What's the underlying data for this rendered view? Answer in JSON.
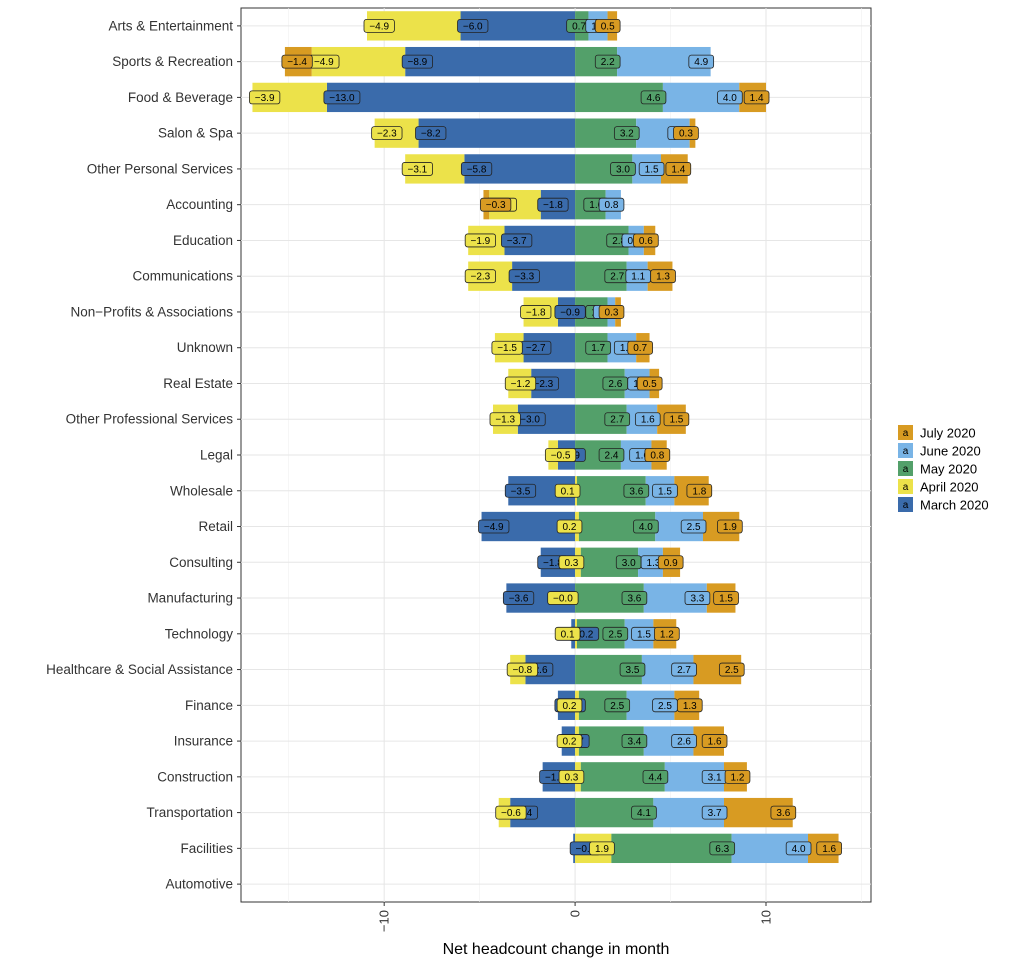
{
  "chart_data": {
    "type": "bar",
    "orientation": "horizontal",
    "stacking": "diverging-stacked",
    "xlabel": "Net headcount change in month",
    "ylabel": "",
    "xlim": [
      -17.5,
      15.5
    ],
    "xticks": [
      -10,
      0,
      10
    ],
    "xtick_labels": [
      "−10",
      "0",
      "10"
    ],
    "grid": true,
    "legend_position": "right",
    "legend_key_glyph": "a",
    "colors": {
      "March 2020": "#3a6bab",
      "April 2020": "#ece24a",
      "May 2020": "#53a06a",
      "June 2020": "#79b4e6",
      "July 2020": "#d89b22"
    },
    "categories": [
      "Arts & Entertainment",
      "Sports & Recreation",
      "Food & Beverage",
      "Salon & Spa",
      "Other Personal Services",
      "Accounting",
      "Education",
      "Communications",
      "Non−Profits & Associations",
      "Unknown",
      "Real Estate",
      "Other Professional Services",
      "Legal",
      "Wholesale",
      "Retail",
      "Consulting",
      "Manufacturing",
      "Technology",
      "Healthcare & Social Assistance",
      "Finance",
      "Insurance",
      "Construction",
      "Transportation",
      "Facilities",
      "Automotive"
    ],
    "series": [
      {
        "name": "March 2020",
        "values": [
          -6.0,
          -8.9,
          -13.0,
          -8.2,
          -5.8,
          -1.8,
          -3.7,
          -3.3,
          -0.9,
          -2.7,
          -2.3,
          -3.0,
          -0.9,
          -3.5,
          -4.9,
          -1.8,
          -3.6,
          -0.2,
          -2.6,
          -0.9,
          -0.7,
          -1.7,
          -3.4,
          -0.1,
          null
        ]
      },
      {
        "name": "April 2020",
        "values": [
          -4.9,
          -4.9,
          -3.9,
          -2.3,
          -3.1,
          -2.7,
          -1.9,
          -2.3,
          -1.8,
          -1.5,
          -1.2,
          -1.3,
          -0.5,
          0.1,
          0.2,
          0.3,
          -0.0,
          0.1,
          -0.8,
          0.2,
          0.2,
          0.3,
          -0.6,
          1.9,
          null
        ]
      },
      {
        "name": "May 2020",
        "values": [
          0.7,
          2.2,
          4.6,
          3.2,
          3.0,
          1.6,
          2.8,
          2.7,
          1.7,
          1.7,
          2.6,
          2.7,
          2.4,
          3.6,
          4.0,
          3.0,
          3.6,
          2.5,
          3.5,
          2.5,
          3.4,
          4.4,
          4.1,
          6.3,
          null
        ]
      },
      {
        "name": "June 2020",
        "values": [
          1.0,
          4.9,
          4.0,
          2.8,
          1.5,
          0.8,
          0.8,
          1.1,
          0.4,
          1.5,
          1.3,
          1.6,
          1.6,
          1.5,
          2.5,
          1.3,
          3.3,
          1.5,
          2.7,
          2.5,
          2.6,
          3.1,
          3.7,
          4.0,
          null
        ]
      },
      {
        "name": "July 2020",
        "values": [
          0.5,
          -1.4,
          1.4,
          0.3,
          1.4,
          -0.3,
          0.6,
          1.3,
          0.3,
          0.7,
          0.5,
          1.5,
          0.8,
          1.8,
          1.9,
          0.9,
          1.5,
          1.2,
          2.5,
          1.3,
          1.6,
          1.2,
          3.6,
          1.6,
          null
        ]
      }
    ],
    "data_label_texts": {
      "March 2020": [
        "−6.0",
        "−8.9",
        "−13.0",
        "−8.2",
        "−5.8",
        "−1.8",
        "−3.7",
        "−3.3",
        "−0.9",
        "−2.7",
        "−2.3",
        "−3.0",
        "−0.9",
        "−3.5",
        "−4.9",
        "−1.8",
        "−3.6",
        "−0.2",
        "−2.6",
        "−0.9",
        "−0.7",
        "−1.7",
        "−3.4",
        "−0.1",
        null
      ],
      "April 2020": [
        "−4.9",
        "−4.9",
        "−3.9",
        "−2.3",
        "−3.1",
        "−2.7",
        "−1.9",
        "−2.3",
        "−1.8",
        "−1.5",
        "−1.2",
        "−1.3",
        "−0.5",
        "0.1",
        "0.2",
        "0.3",
        "−0.0",
        "0.1",
        "−0.8",
        "0.2",
        "0.2",
        "0.3",
        "−0.6",
        "1.9",
        null
      ],
      "May 2020": [
        "0.7",
        "2.2",
        "4.6",
        "3.2",
        "3.0",
        "1.6",
        "2.8",
        "2.7",
        "1.7",
        "1.7",
        "2.6",
        "2.7",
        "2.4",
        "3.6",
        "4.0",
        "3.0",
        "3.6",
        "2.5",
        "3.5",
        "2.5",
        "3.4",
        "4.4",
        "4.1",
        "6.3",
        null
      ],
      "June 2020": [
        "1.0",
        "4.9",
        "4.0",
        "2.8",
        "1.5",
        "0.8",
        "0.8",
        "1.1",
        "0.4",
        "1.5",
        "1.3",
        "1.6",
        "1.6",
        "1.5",
        "2.5",
        "1.3",
        "3.3",
        "1.5",
        "2.7",
        "2.5",
        "2.6",
        "3.1",
        "3.7",
        "4.0",
        null
      ],
      "July 2020": [
        "0.5",
        "−1.4",
        "1.4",
        "0.3",
        "1.4",
        "−0.3",
        "0.6",
        "1.3",
        "0.3",
        "0.7",
        "0.5",
        "1.5",
        "0.8",
        "1.8",
        "1.9",
        "0.9",
        "1.5",
        "1.2",
        "2.5",
        "1.3",
        "1.6",
        "1.2",
        "3.6",
        "1.6",
        null
      ]
    },
    "legend": [
      "July 2020",
      "June 2020",
      "May 2020",
      "April 2020",
      "March 2020"
    ]
  }
}
